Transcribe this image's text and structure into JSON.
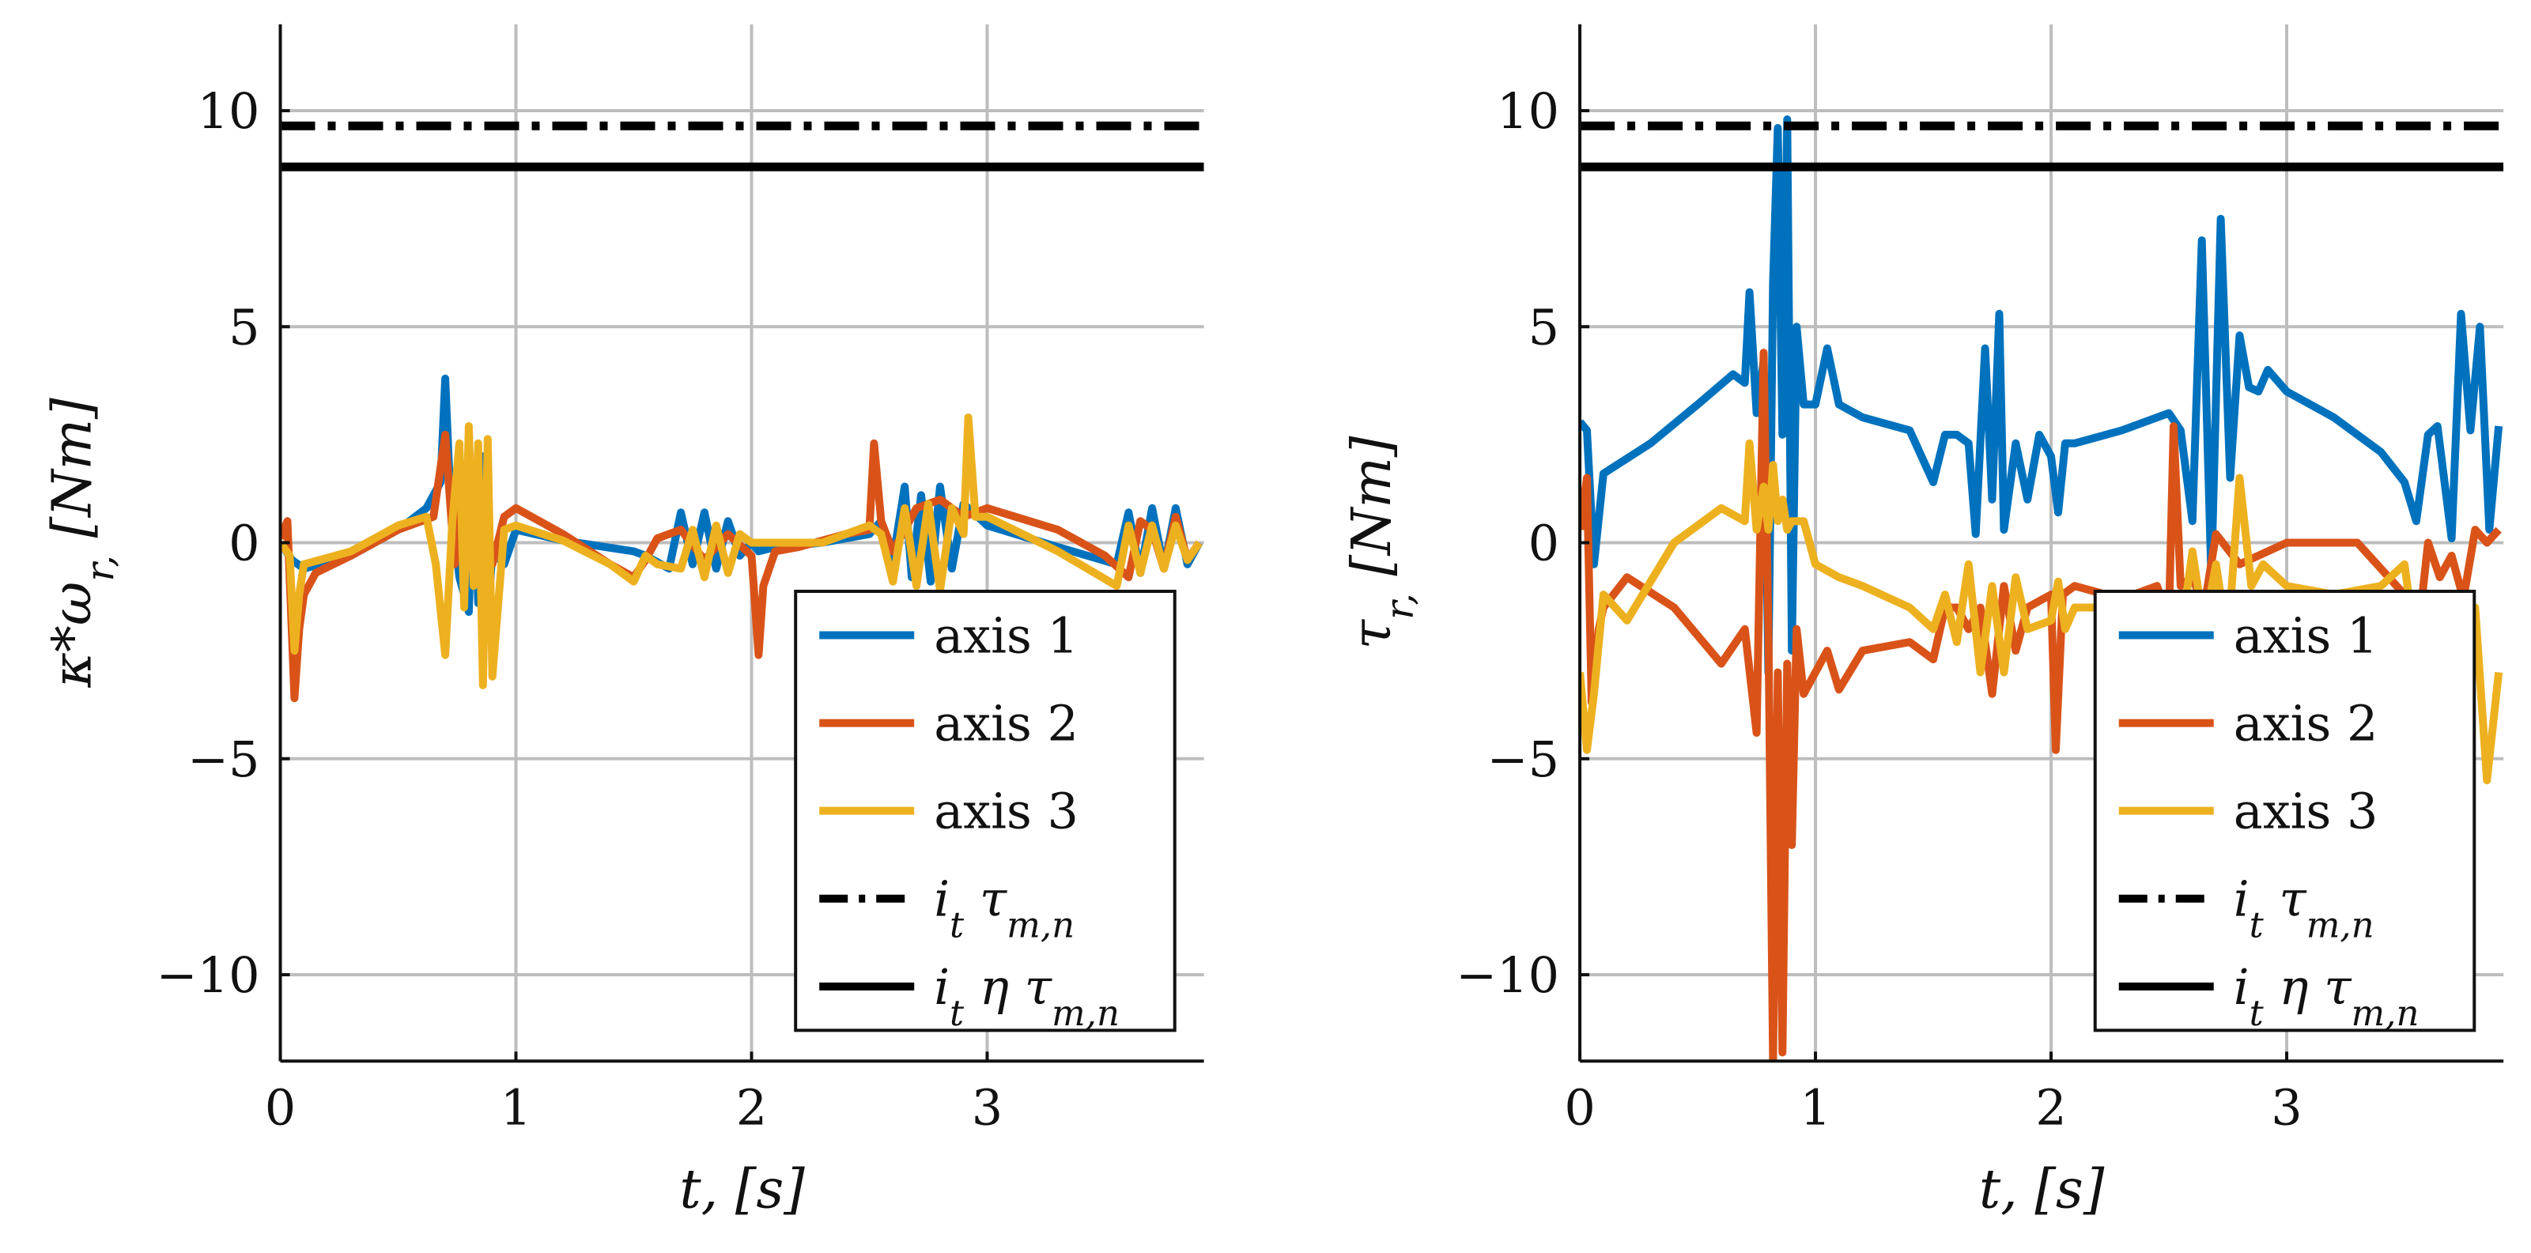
{
  "colors": {
    "axis1": "#0072BD",
    "axis2": "#D95319",
    "axis3": "#EDB120",
    "limit": "#000000",
    "grid": "#bdbdbd"
  },
  "chart_data": [
    {
      "type": "line",
      "xlabel": "t, [s]",
      "ylabel": "κ*ω_r, [Nm]",
      "xlim": [
        0,
        3.92
      ],
      "ylim": [
        -12,
        12
      ],
      "xticks": [
        0,
        1,
        2,
        3
      ],
      "yticks": [
        -10,
        -5,
        0,
        5,
        10
      ],
      "xtick_labels": [
        "0",
        "1",
        "2",
        "3"
      ],
      "ytick_labels": [
        "−10",
        "−5",
        "0",
        "5",
        "10"
      ],
      "grid": true,
      "legend_position": "bottom-right",
      "series": [
        {
          "name": "axis 1",
          "color_key": "axis1",
          "style": "solid",
          "x": [
            0,
            0.05,
            0.1,
            0.3,
            0.5,
            0.62,
            0.68,
            0.7,
            0.72,
            0.76,
            0.8,
            0.82,
            0.84,
            0.86,
            0.88,
            0.9,
            0.95,
            1.0,
            1.2,
            1.5,
            1.55,
            1.65,
            1.7,
            1.75,
            1.8,
            1.85,
            1.9,
            1.95,
            2.0,
            2.03,
            2.1,
            2.3,
            2.5,
            2.55,
            2.6,
            2.65,
            2.68,
            2.72,
            2.76,
            2.8,
            2.85,
            2.9,
            3.0,
            3.3,
            3.55,
            3.6,
            3.65,
            3.7,
            3.75,
            3.8,
            3.85,
            3.9
          ],
          "y": [
            0,
            -0.4,
            -0.6,
            -0.3,
            0.3,
            0.8,
            1.4,
            3.8,
            1.2,
            -0.8,
            -1.6,
            1.8,
            -1.4,
            2.0,
            -1.8,
            -0.2,
            -0.5,
            0.3,
            0.05,
            -0.2,
            -0.3,
            -0.6,
            0.7,
            -0.5,
            0.7,
            -0.6,
            0.5,
            -0.3,
            0.0,
            -0.2,
            -0.1,
            0.0,
            0.2,
            0.5,
            -0.4,
            1.3,
            -0.8,
            1.1,
            -0.9,
            1.3,
            -0.6,
            0.9,
            0.4,
            -0.1,
            -0.5,
            0.7,
            -0.7,
            0.8,
            -0.6,
            0.8,
            -0.5,
            0.0
          ]
        },
        {
          "name": "axis 2",
          "color_key": "axis2",
          "style": "solid",
          "x": [
            0,
            0.03,
            0.06,
            0.08,
            0.1,
            0.15,
            0.3,
            0.5,
            0.65,
            0.7,
            0.74,
            0.78,
            0.82,
            0.86,
            0.9,
            0.95,
            1.0,
            1.2,
            1.4,
            1.5,
            1.55,
            1.6,
            1.7,
            1.8,
            1.9,
            2.0,
            2.03,
            2.05,
            2.1,
            2.2,
            2.4,
            2.5,
            2.52,
            2.55,
            2.6,
            2.7,
            2.8,
            2.9,
            3.0,
            3.3,
            3.5,
            3.6,
            3.65,
            3.7,
            3.75,
            3.8,
            3.85,
            3.9
          ],
          "y": [
            0.1,
            0.5,
            -3.6,
            -2.0,
            -1.2,
            -0.7,
            -0.3,
            0.3,
            0.6,
            2.5,
            -0.5,
            1.8,
            -0.7,
            1.2,
            -0.5,
            0.6,
            0.8,
            0.2,
            -0.5,
            -0.8,
            -0.4,
            0.1,
            0.3,
            -0.4,
            0.2,
            -0.3,
            -2.6,
            -1.0,
            -0.2,
            -0.1,
            0.2,
            0.3,
            2.3,
            0.5,
            -0.2,
            0.8,
            1.0,
            0.6,
            0.8,
            0.3,
            -0.3,
            -0.8,
            0.5,
            0.3,
            -0.6,
            0.6,
            -0.4,
            0.0
          ]
        },
        {
          "name": "axis 3",
          "color_key": "axis3",
          "style": "solid",
          "x": [
            0,
            0.04,
            0.06,
            0.08,
            0.1,
            0.3,
            0.5,
            0.62,
            0.66,
            0.7,
            0.73,
            0.76,
            0.78,
            0.8,
            0.82,
            0.84,
            0.86,
            0.88,
            0.9,
            0.95,
            1.0,
            1.2,
            1.4,
            1.5,
            1.55,
            1.6,
            1.7,
            1.75,
            1.8,
            1.85,
            1.9,
            1.95,
            2.0,
            2.3,
            2.5,
            2.55,
            2.6,
            2.65,
            2.7,
            2.75,
            2.8,
            2.85,
            2.9,
            2.92,
            2.95,
            3.0,
            3.3,
            3.55,
            3.6,
            3.65,
            3.7,
            3.75,
            3.8,
            3.85,
            3.9
          ],
          "y": [
            0,
            -0.3,
            -2.5,
            -1.2,
            -0.5,
            -0.2,
            0.4,
            0.6,
            -0.5,
            -2.6,
            0.5,
            2.3,
            -1.5,
            2.7,
            -1.0,
            2.3,
            -3.3,
            2.4,
            -3.1,
            0.3,
            0.4,
            0.05,
            -0.5,
            -0.9,
            -0.3,
            -0.5,
            -0.6,
            0.3,
            -0.8,
            0.4,
            -0.7,
            0.2,
            0.0,
            0.0,
            0.4,
            0.2,
            -0.9,
            0.8,
            -1.0,
            0.9,
            -1.1,
            0.8,
            0.2,
            2.9,
            0.6,
            0.6,
            -0.2,
            -1.0,
            0.4,
            -0.7,
            0.4,
            -0.6,
            0.4,
            -0.4,
            0.0
          ]
        },
        {
          "name": "i_t τ_m,n",
          "color_key": "limit",
          "style": "dashdot",
          "x": [
            0,
            3.92
          ],
          "y": [
            9.65,
            9.65
          ]
        },
        {
          "name": "i_t η τ_m,n",
          "color_key": "limit",
          "style": "solid",
          "x": [
            0,
            3.92
          ],
          "y": [
            8.7,
            8.7
          ]
        }
      ]
    },
    {
      "type": "line",
      "xlabel": "t, [s]",
      "ylabel": "τ_r, [Nm]",
      "xlim": [
        0,
        3.92
      ],
      "ylim": [
        -12,
        12
      ],
      "xticks": [
        0,
        1,
        2,
        3
      ],
      "yticks": [
        -10,
        -5,
        0,
        5,
        10
      ],
      "xtick_labels": [
        "0",
        "1",
        "2",
        "3"
      ],
      "ytick_labels": [
        "−10",
        "−5",
        "0",
        "5",
        "10"
      ],
      "grid": true,
      "legend_position": "bottom-right",
      "series": [
        {
          "name": "axis 1",
          "color_key": "axis1",
          "style": "solid",
          "x": [
            0,
            0.03,
            0.06,
            0.1,
            0.3,
            0.5,
            0.65,
            0.7,
            0.72,
            0.75,
            0.78,
            0.8,
            0.82,
            0.84,
            0.86,
            0.88,
            0.9,
            0.92,
            0.95,
            1.0,
            1.05,
            1.1,
            1.2,
            1.4,
            1.5,
            1.55,
            1.6,
            1.65,
            1.68,
            1.72,
            1.75,
            1.78,
            1.8,
            1.85,
            1.9,
            1.95,
            2.0,
            2.03,
            2.06,
            2.1,
            2.3,
            2.5,
            2.55,
            2.6,
            2.64,
            2.68,
            2.72,
            2.76,
            2.8,
            2.84,
            2.88,
            2.92,
            3.0,
            3.2,
            3.4,
            3.5,
            3.55,
            3.6,
            3.64,
            3.7,
            3.74,
            3.78,
            3.82,
            3.86,
            3.9
          ],
          "y": [
            2.8,
            2.6,
            -0.5,
            1.6,
            2.3,
            3.2,
            3.9,
            3.7,
            5.8,
            3.0,
            4.2,
            -3.0,
            6.0,
            9.6,
            2.5,
            9.8,
            -2.5,
            5.0,
            3.2,
            3.2,
            4.5,
            3.2,
            2.9,
            2.6,
            1.4,
            2.5,
            2.5,
            2.3,
            0.2,
            4.5,
            1.0,
            5.3,
            0.3,
            2.3,
            1.0,
            2.5,
            2.0,
            0.7,
            2.3,
            2.3,
            2.6,
            3.0,
            2.6,
            0.5,
            7.0,
            -0.8,
            7.5,
            1.5,
            4.8,
            3.6,
            3.5,
            4.0,
            3.5,
            2.9,
            2.1,
            1.4,
            0.5,
            2.5,
            2.7,
            0.1,
            5.3,
            2.6,
            5.0,
            0.3,
            2.7
          ]
        },
        {
          "name": "axis 2",
          "color_key": "axis2",
          "style": "solid",
          "x": [
            0,
            0.03,
            0.05,
            0.08,
            0.1,
            0.2,
            0.4,
            0.6,
            0.7,
            0.75,
            0.78,
            0.8,
            0.82,
            0.84,
            0.86,
            0.88,
            0.9,
            0.92,
            0.95,
            1.0,
            1.05,
            1.1,
            1.2,
            1.4,
            1.5,
            1.55,
            1.6,
            1.65,
            1.7,
            1.75,
            1.8,
            1.85,
            1.9,
            2.0,
            2.02,
            2.05,
            2.1,
            2.3,
            2.45,
            2.5,
            2.52,
            2.55,
            2.6,
            2.65,
            2.7,
            2.8,
            3.0,
            3.3,
            3.5,
            3.55,
            3.6,
            3.65,
            3.7,
            3.75,
            3.8,
            3.85,
            3.9
          ],
          "y": [
            0.3,
            1.5,
            -3.7,
            -2.0,
            -1.5,
            -0.8,
            -1.5,
            -2.8,
            -2.0,
            -4.4,
            4.4,
            -2.0,
            -12.0,
            -3.0,
            -11.8,
            -2.8,
            -7.0,
            -2.0,
            -3.5,
            -3.0,
            -2.5,
            -3.4,
            -2.5,
            -2.3,
            -2.7,
            -1.5,
            -1.5,
            -2.0,
            -1.5,
            -3.5,
            -1.0,
            -2.5,
            -1.5,
            -1.2,
            -4.8,
            -1.2,
            -1.0,
            -1.3,
            -1.0,
            -1.8,
            2.7,
            -1.0,
            -0.8,
            -1.5,
            0.2,
            -0.5,
            0.0,
            0.0,
            -1.2,
            -2.5,
            0.0,
            -0.8,
            -0.3,
            -1.3,
            0.3,
            0.0,
            0.3
          ]
        },
        {
          "name": "axis 3",
          "color_key": "axis3",
          "style": "solid",
          "x": [
            0,
            0.03,
            0.06,
            0.1,
            0.2,
            0.4,
            0.6,
            0.7,
            0.72,
            0.75,
            0.78,
            0.8,
            0.82,
            0.84,
            0.86,
            0.88,
            0.9,
            0.95,
            1.0,
            1.1,
            1.2,
            1.4,
            1.5,
            1.55,
            1.6,
            1.65,
            1.7,
            1.75,
            1.8,
            1.85,
            1.9,
            2.0,
            2.03,
            2.06,
            2.1,
            2.3,
            2.5,
            2.55,
            2.6,
            2.65,
            2.7,
            2.75,
            2.8,
            2.85,
            2.9,
            3.0,
            3.2,
            3.4,
            3.5,
            3.55,
            3.6,
            3.65,
            3.7,
            3.75,
            3.8,
            3.85,
            3.9
          ],
          "y": [
            -3.0,
            -4.8,
            -3.5,
            -1.2,
            -1.8,
            0.0,
            0.8,
            0.5,
            2.3,
            0.3,
            1.3,
            0.3,
            1.8,
            0.5,
            1.0,
            0.3,
            0.5,
            0.5,
            -0.5,
            -0.8,
            -1.0,
            -1.5,
            -2.0,
            -1.2,
            -2.3,
            -0.5,
            -3.0,
            -1.0,
            -3.0,
            -0.8,
            -2.0,
            -1.8,
            -0.9,
            -2.0,
            -1.5,
            -1.5,
            -1.2,
            -2.2,
            -0.2,
            -2.0,
            -0.5,
            -2.3,
            1.5,
            -1.0,
            -0.5,
            -1.0,
            -1.2,
            -1.0,
            -0.5,
            -2.5,
            -1.5,
            -3.0,
            -1.8,
            -4.5,
            -1.5,
            -5.5,
            -3.0
          ]
        },
        {
          "name": "i_t τ_m,n",
          "color_key": "limit",
          "style": "dashdot",
          "x": [
            0,
            3.92
          ],
          "y": [
            9.65,
            9.65
          ]
        },
        {
          "name": "i_t η τ_m,n",
          "color_key": "limit",
          "style": "solid",
          "x": [
            0,
            3.92
          ],
          "y": [
            8.7,
            8.7
          ]
        }
      ]
    }
  ]
}
